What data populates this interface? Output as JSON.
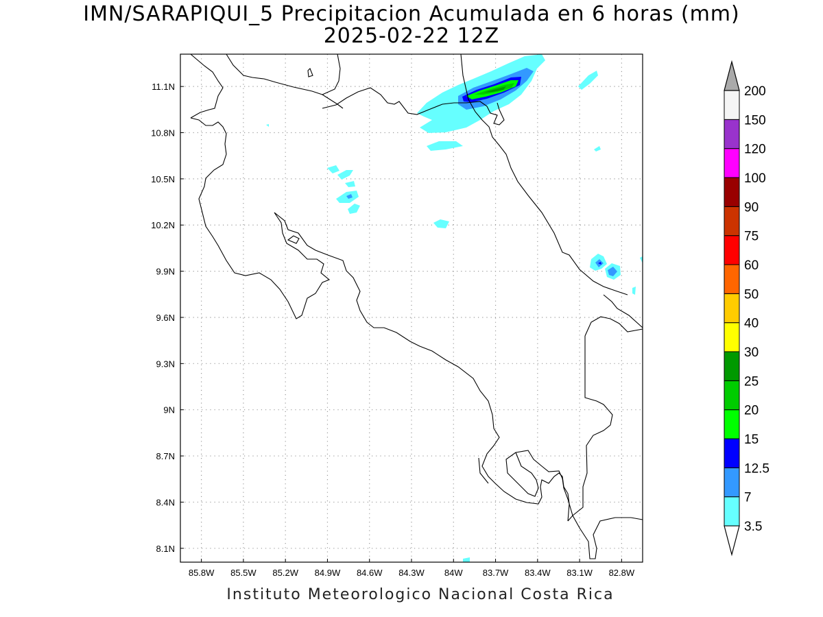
{
  "title": {
    "line1": "IMN/SARAPIQUI_5 Precipitacion Acumulada en 6 horas (mm)",
    "line2": "2025-02-22 12Z"
  },
  "footer": "Instituto Meteorologico Nacional Costa Rica",
  "axes": {
    "x_ticks": [
      "85.8W",
      "85.5W",
      "85.2W",
      "84.9W",
      "84.6W",
      "84.3W",
      "84W",
      "83.7W",
      "83.4W",
      "83.1W",
      "82.8W"
    ],
    "y_ticks": [
      "11.1N",
      "10.8N",
      "10.5N",
      "10.2N",
      "9.9N",
      "9.6N",
      "9.3N",
      "9N",
      "8.7N",
      "8.4N",
      "8.1N"
    ],
    "x_range_lon": [
      -85.95,
      -82.65
    ],
    "y_range_lat": [
      8.01,
      11.31
    ],
    "grid": true
  },
  "colorbar": {
    "labels": [
      "3.5",
      "7",
      "12.5",
      "15",
      "20",
      "25",
      "30",
      "40",
      "50",
      "60",
      "75",
      "90",
      "100",
      "120",
      "150",
      "200"
    ],
    "colors": [
      "#66ffff",
      "#3399ff",
      "#0000ff",
      "#00ff00",
      "#00cc00",
      "#009900",
      "#ffff00",
      "#ffcc00",
      "#ff6600",
      "#ff0000",
      "#cc3300",
      "#990000",
      "#ff00ff",
      "#9933cc",
      "#f5f5f5",
      "#aaaaaa"
    ]
  }
}
